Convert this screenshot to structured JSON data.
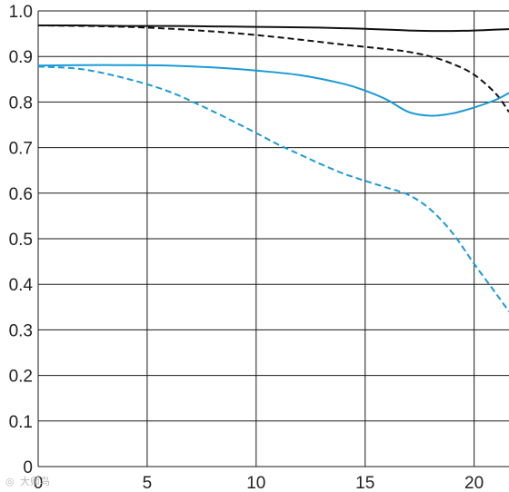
{
  "chart_data": {
    "type": "line",
    "title": "",
    "xlabel": "",
    "ylabel": "",
    "xlim": [
      0,
      21.6
    ],
    "ylim": [
      0,
      1.0
    ],
    "x_ticks": [
      0,
      5,
      10,
      15,
      20
    ],
    "y_ticks": [
      0,
      0.1,
      0.2,
      0.3,
      0.4,
      0.5,
      0.6,
      0.7,
      0.8,
      0.9,
      1.0
    ],
    "x_tick_labels": [
      "0",
      "5",
      "10",
      "15",
      "20"
    ],
    "y_tick_labels": [
      "0",
      "0.1",
      "0.2",
      "0.3",
      "0.4",
      "0.5",
      "0.6",
      "0.7",
      "0.8",
      "0.9",
      "1.0"
    ],
    "grid": true,
    "legend": "none",
    "series": [
      {
        "color": "#111111",
        "style": "solid",
        "x": [
          0,
          2,
          4,
          6,
          8,
          10,
          12,
          14,
          16,
          17,
          18,
          19,
          20,
          21,
          21.6
        ],
        "y": [
          0.968,
          0.968,
          0.967,
          0.967,
          0.966,
          0.965,
          0.964,
          0.962,
          0.959,
          0.957,
          0.956,
          0.956,
          0.957,
          0.959,
          0.96
        ]
      },
      {
        "color": "#111111",
        "style": "dashed",
        "x": [
          0,
          2,
          4,
          6,
          8,
          10,
          12,
          14,
          16,
          17,
          18,
          19,
          20,
          21,
          21.6
        ],
        "y": [
          0.968,
          0.967,
          0.965,
          0.961,
          0.955,
          0.947,
          0.937,
          0.926,
          0.916,
          0.91,
          0.9,
          0.884,
          0.86,
          0.818,
          0.778
        ]
      },
      {
        "color": "#1a9ad6",
        "style": "solid",
        "x": [
          0,
          2,
          4,
          6,
          8,
          10,
          12,
          14,
          15,
          16,
          17,
          18,
          19,
          20,
          21,
          21.6
        ],
        "y": [
          0.88,
          0.881,
          0.881,
          0.88,
          0.876,
          0.869,
          0.859,
          0.84,
          0.825,
          0.805,
          0.778,
          0.77,
          0.775,
          0.788,
          0.805,
          0.82
        ]
      },
      {
        "color": "#1a9ad6",
        "style": "dashed",
        "x": [
          0,
          2,
          4,
          6,
          8,
          10,
          11,
          12,
          13,
          14,
          15,
          16,
          17,
          18,
          19,
          20,
          21,
          21.6
        ],
        "y": [
          0.878,
          0.872,
          0.852,
          0.823,
          0.78,
          0.732,
          0.707,
          0.685,
          0.663,
          0.643,
          0.627,
          0.612,
          0.596,
          0.564,
          0.513,
          0.445,
          0.38,
          0.34
        ]
      }
    ]
  },
  "watermark": "大师鸟"
}
